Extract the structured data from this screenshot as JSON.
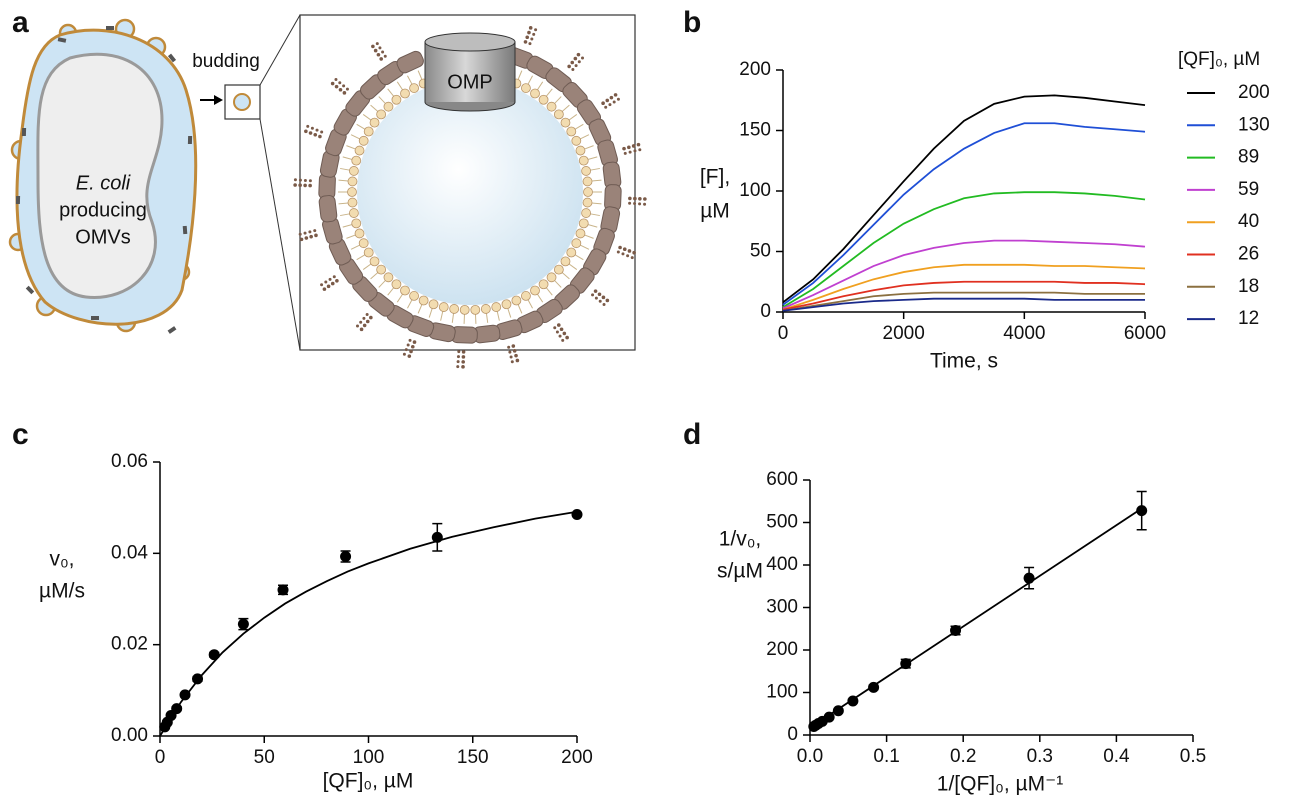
{
  "diagram": {
    "panel_label": "a",
    "budding": "budding",
    "cell_label": [
      "E. coli",
      "producing",
      "OMVs"
    ],
    "protein_label": "OMP"
  },
  "chart_data": [
    {
      "type": "line",
      "panel_label": "b",
      "x_label": "Time, s",
      "y_label": [
        "[F],",
        "µM"
      ],
      "legend_title": "[QF]₀, µM",
      "x": [
        0,
        500,
        1000,
        1500,
        2000,
        2500,
        3000,
        3500,
        4000,
        4500,
        5000,
        5500,
        6000
      ],
      "series": [
        {
          "name": "200",
          "color": "#000000",
          "values": [
            8,
            27,
            52,
            80,
            108,
            135,
            158,
            172,
            178,
            179,
            177,
            174,
            171
          ]
        },
        {
          "name": "130",
          "color": "#1f4fd6",
          "values": [
            6,
            24,
            47,
            72,
            97,
            118,
            135,
            148,
            156,
            156,
            153,
            151,
            149
          ]
        },
        {
          "name": "89",
          "color": "#22bb22",
          "values": [
            4,
            19,
            38,
            57,
            73,
            85,
            94,
            98,
            99,
            99,
            98,
            96,
            93
          ]
        },
        {
          "name": "59",
          "color": "#c040d0",
          "values": [
            3,
            14,
            26,
            38,
            47,
            53,
            57,
            59,
            59,
            58,
            57,
            56,
            54
          ]
        },
        {
          "name": "40",
          "color": "#f0a020",
          "values": [
            2,
            10,
            19,
            27,
            33,
            37,
            39,
            39,
            39,
            38,
            38,
            37,
            36
          ]
        },
        {
          "name": "26",
          "color": "#e03020",
          "values": [
            2,
            7,
            13,
            18,
            22,
            24,
            25,
            25,
            25,
            25,
            24,
            24,
            23
          ]
        },
        {
          "name": "18",
          "color": "#8b7040",
          "values": [
            1,
            5,
            9,
            13,
            15,
            16,
            16,
            16,
            16,
            16,
            15,
            15,
            15
          ]
        },
        {
          "name": "12",
          "color": "#1a2a8a",
          "values": [
            1,
            4,
            7,
            9,
            10,
            11,
            11,
            11,
            11,
            10,
            10,
            10,
            10
          ]
        }
      ],
      "xlim": [
        0,
        6000
      ],
      "xticks": [
        0,
        2000,
        4000,
        6000
      ],
      "ylim": [
        0,
        200
      ],
      "yticks": [
        0,
        50,
        100,
        150,
        200
      ]
    },
    {
      "type": "scatter",
      "panel_label": "c",
      "x_label": "[QF]₀, µM",
      "y_label": [
        "v₀,",
        "µM/s"
      ],
      "color": "#000000",
      "x": [
        2.3,
        3.5,
        5.3,
        8,
        12,
        18,
        26,
        40,
        59,
        89,
        133,
        200
      ],
      "values": [
        0.002,
        0.003,
        0.0045,
        0.006,
        0.009,
        0.0125,
        0.0178,
        0.0245,
        0.032,
        0.0393,
        0.0435,
        0.0485
      ],
      "errors": [
        0.0003,
        0.0003,
        0.0003,
        0.0004,
        0.0004,
        0.0005,
        0.0005,
        0.0012,
        0.001,
        0.0012,
        0.003,
        0.0004
      ],
      "fit": {
        "x": [
          0,
          10,
          20,
          30,
          40,
          50,
          60,
          70,
          80,
          90,
          100,
          120,
          140,
          160,
          180,
          200
        ],
        "values": [
          0,
          0.0074,
          0.0133,
          0.0183,
          0.0224,
          0.0259,
          0.029,
          0.0316,
          0.0339,
          0.036,
          0.0378,
          0.041,
          0.0436,
          0.0457,
          0.0476,
          0.0491
        ]
      },
      "xlim": [
        0,
        200
      ],
      "xticks": [
        0,
        50,
        100,
        150,
        200
      ],
      "ylim": [
        0,
        0.06
      ],
      "yticks": [
        {
          "value": 0,
          "label": "0.00"
        },
        0.02,
        0.04,
        0.06
      ]
    },
    {
      "type": "scatter",
      "panel_label": "d",
      "x_label": "1/[QF]₀, µM⁻¹",
      "y_label": [
        "1/v₀,",
        "s/µM"
      ],
      "color": "#000000",
      "x": [
        0.005,
        0.0075,
        0.011,
        0.016,
        0.025,
        0.037,
        0.056,
        0.083,
        0.125,
        0.19,
        0.286,
        0.433
      ],
      "values": [
        20,
        23,
        27,
        32,
        42,
        57,
        80,
        112,
        168,
        246,
        369,
        528
      ],
      "errors": [
        2,
        2,
        2,
        2,
        3,
        3,
        4,
        5,
        10,
        10,
        25,
        45
      ],
      "fit": {
        "x": [
          0,
          0.433
        ],
        "values": [
          17,
          533
        ]
      },
      "xlim": [
        0,
        0.5
      ],
      "xticks": [
        {
          "value": 0,
          "label": "0.0"
        },
        0.1,
        0.2,
        0.3,
        0.4,
        0.5
      ],
      "ylim": [
        0,
        600
      ],
      "yticks": [
        0,
        100,
        200,
        300,
        400,
        500,
        600
      ]
    }
  ]
}
